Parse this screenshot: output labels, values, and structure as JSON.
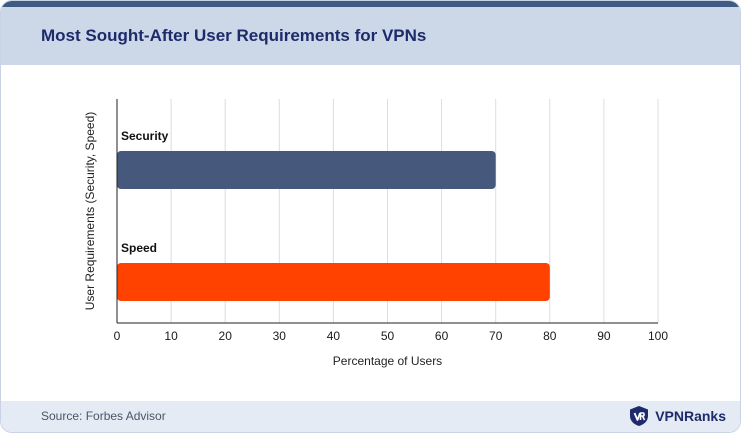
{
  "header": {
    "title": "Most Sought-After User Requirements for VPNs"
  },
  "footer": {
    "source": "Source: Forbes Advisor",
    "brand": "VPNRanks"
  },
  "icons": {
    "brand_logo": "vpnranks-shield-logo"
  },
  "colors": {
    "header_bg": "#ccd7e8",
    "title": "#1d2b6b",
    "security_bar": "#47587d",
    "speed_bar": "#ff4200",
    "gridline": "#dddddd"
  },
  "chart_data": {
    "type": "bar",
    "orientation": "horizontal",
    "title": "Most Sought-After User Requirements for VPNs",
    "xlabel": "Percentage of Users",
    "ylabel": "User Requirements (Security, Speed)",
    "categories": [
      "Security",
      "Speed"
    ],
    "values": [
      70,
      80
    ],
    "bar_colors": [
      "#47587d",
      "#ff4200"
    ],
    "xlim": [
      0,
      100
    ],
    "xticks": [
      0,
      10,
      20,
      30,
      40,
      50,
      60,
      70,
      80,
      90,
      100
    ],
    "grid": "vertical",
    "legend": "none"
  }
}
